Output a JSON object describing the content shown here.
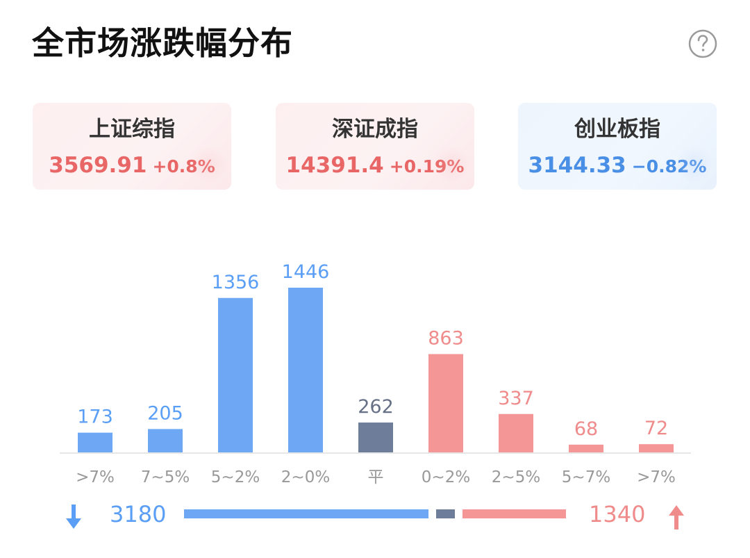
{
  "title": "全市场涨跌幅分布",
  "help_icon": "question-circle-icon",
  "indices": [
    {
      "name": "上证综指",
      "value": "3569.91",
      "change": "+0.8%",
      "trend": "up"
    },
    {
      "name": "深证成指",
      "value": "14391.4",
      "change": "+0.19%",
      "trend": "up"
    },
    {
      "name": "创业板指",
      "value": "3144.33",
      "change": "−0.82%",
      "trend": "down"
    }
  ],
  "colors": {
    "down": "#6ea8f5",
    "flat": "#6e7d99",
    "up": "#f59696",
    "down_text": "#5a9ef5",
    "flat_text": "#667085",
    "up_text": "#f08b8b"
  },
  "chart_data": {
    "type": "bar",
    "categories": [
      ">7%",
      "7~5%",
      "5~2%",
      "2~0%",
      "平",
      "0~2%",
      "2~5%",
      "5~7%",
      ">7%"
    ],
    "values": [
      173,
      205,
      1356,
      1446,
      262,
      863,
      337,
      68,
      72
    ],
    "groups": [
      "down",
      "down",
      "down",
      "down",
      "flat",
      "up",
      "up",
      "up",
      "up"
    ],
    "title": "",
    "xlabel": "",
    "ylabel": "",
    "ylim": [
      0,
      1500
    ],
    "grid": false
  },
  "summary": {
    "down_count": "3180",
    "up_count": "1340",
    "flat_count": 262,
    "down_icon": "arrow-down-icon",
    "up_icon": "arrow-up-icon"
  }
}
